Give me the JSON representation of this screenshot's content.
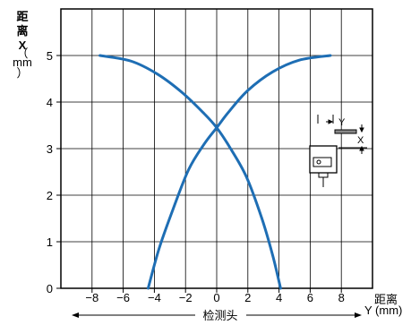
{
  "chart_data": {
    "type": "line",
    "ylabel_lines": [
      "距",
      "离",
      "X",
      "（",
      "mm",
      "）"
    ],
    "xlabel_lines": [
      "距离",
      "Y (mm)"
    ],
    "detector_label": "检测头",
    "inset_labels": {
      "y": "Y",
      "x": "X"
    },
    "x_ticks": [
      -8,
      -6,
      -4,
      -2,
      0,
      2,
      4,
      6,
      8
    ],
    "x_tick_labels": [
      "−8",
      "−6",
      "−4",
      "−2",
      "0",
      "2",
      "4",
      "6",
      "8"
    ],
    "y_ticks": [
      0,
      1,
      2,
      3,
      4,
      5
    ],
    "y_tick_labels": [
      "0",
      "1",
      "2",
      "3",
      "4",
      "5"
    ],
    "xlim": [
      -10,
      10
    ],
    "ylim": [
      0,
      6
    ],
    "grid": true,
    "line_color": "#1e6eb4",
    "series": [
      {
        "x": [
          -7.5,
          -5.5,
          -3.8,
          -2.2,
          -0.8,
          0,
          0.8,
          1.9,
          2.9,
          3.6,
          4.1
        ],
        "y": [
          5.0,
          4.88,
          4.6,
          4.2,
          3.75,
          3.45,
          3.05,
          2.4,
          1.5,
          0.7,
          0.0
        ]
      },
      {
        "x": [
          -4.4,
          -3.7,
          -2.8,
          -1.8,
          -0.8,
          0,
          0.8,
          2.0,
          3.6,
          5.3,
          7.3
        ],
        "y": [
          0.0,
          0.85,
          1.7,
          2.55,
          3.1,
          3.45,
          3.8,
          4.25,
          4.65,
          4.9,
          5.0
        ]
      }
    ]
  }
}
